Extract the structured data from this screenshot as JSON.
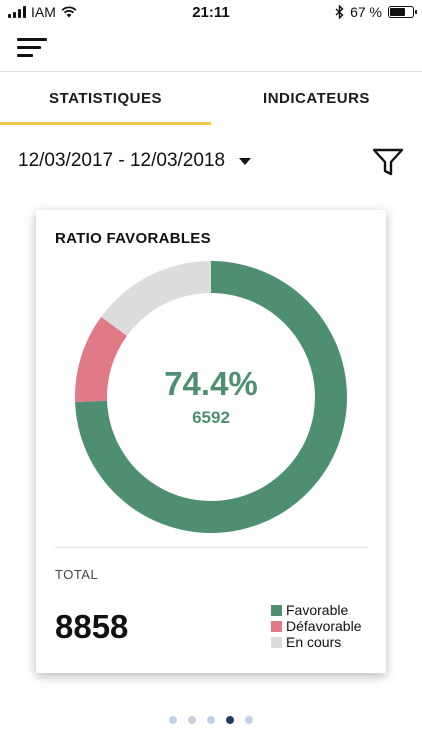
{
  "status_bar": {
    "carrier": "IAM",
    "time": "21:11",
    "battery_text": "67 %",
    "battery_level": 0.67,
    "icons": [
      "signal-icon",
      "wifi-icon",
      "bluetooth-icon",
      "battery-icon"
    ]
  },
  "header": {
    "menu_icon": "menu-icon"
  },
  "tabs": [
    {
      "label": "STATISTIQUES",
      "active": true
    },
    {
      "label": "INDICATEURS",
      "active": false
    }
  ],
  "date_filter": {
    "range": "12/03/2017 - 12/03/2018",
    "dropdown_icon": "caret-down-icon",
    "filter_icon": "filter-icon"
  },
  "card": {
    "title": "RATIO FAVORABLES",
    "center_percent": "74.4%",
    "center_value": "6592",
    "total_label": "TOTAL",
    "total_value": "8858"
  },
  "colors": {
    "favorable": "#4e8f72",
    "defavorable": "#e07a86",
    "en_cours": "#dcdcdc",
    "tab_indicator": "#efc94c",
    "dot_inactive": "#c3d0e2",
    "dot_active": "#1f3c66"
  },
  "chart_data": {
    "type": "pie",
    "variant": "donut",
    "title": "RATIO FAVORABLES",
    "series": [
      {
        "name": "Favorable",
        "value": 6592
      },
      {
        "name": "Défavorable",
        "value": 940
      },
      {
        "name": "En cours",
        "value": 1326
      }
    ],
    "total": 8858,
    "legend_position": "bottom-right"
  },
  "pager": {
    "count": 5,
    "active_index": 3
  }
}
